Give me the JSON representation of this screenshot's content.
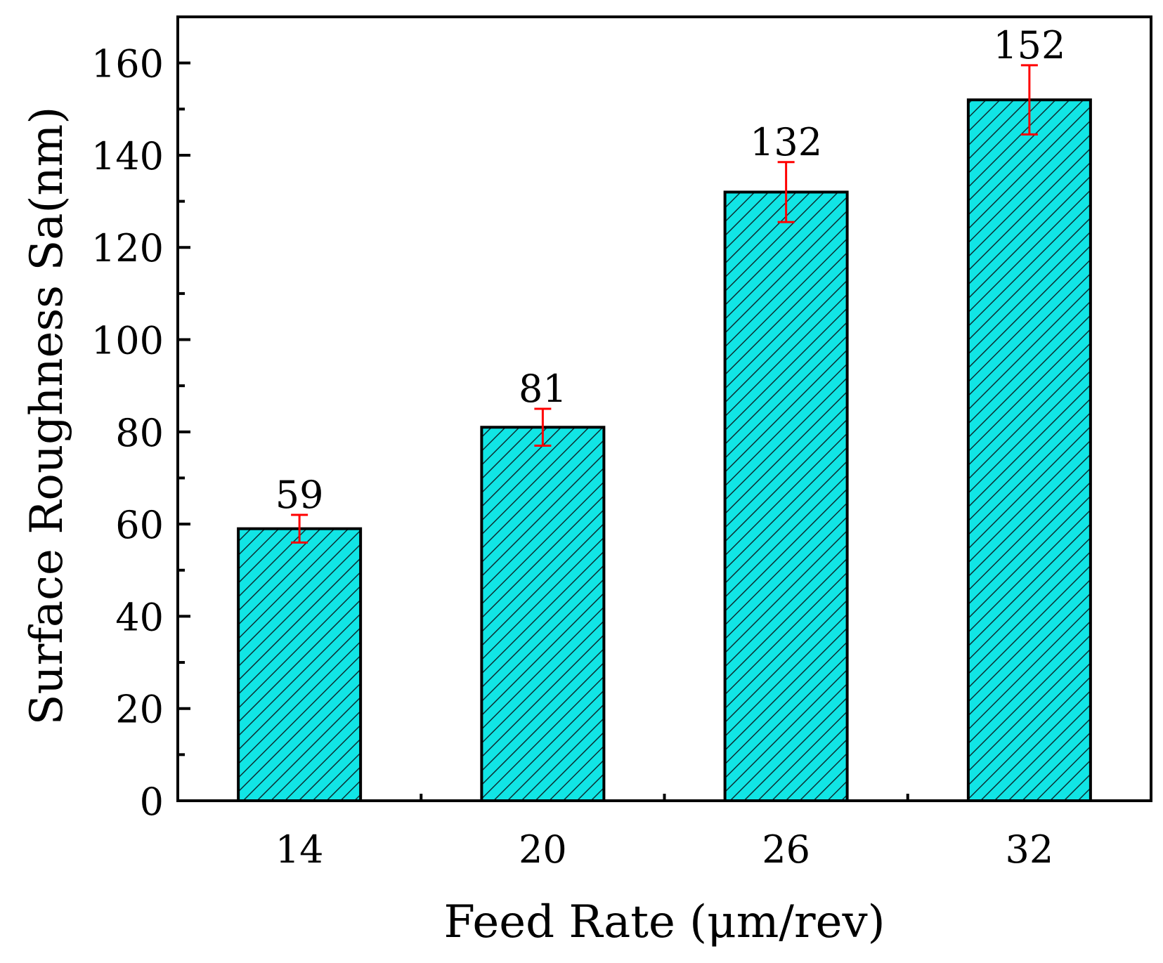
{
  "chart_data": {
    "type": "bar",
    "title": "",
    "xlabel": "Feed Rate (μm/rev)",
    "ylabel": "Surface Roughness Sa(nm)",
    "categories": [
      "14",
      "20",
      "26",
      "32"
    ],
    "values": [
      59,
      81,
      132,
      152
    ],
    "error": [
      3,
      4,
      6.5,
      7.5
    ],
    "data_labels": [
      "59",
      "81",
      "132",
      "152"
    ],
    "ylim": [
      0,
      170
    ],
    "yticks": [
      0,
      20,
      40,
      60,
      80,
      100,
      120,
      140,
      160
    ],
    "ytick_labels": [
      "0",
      "20",
      "40",
      "60",
      "80",
      "100",
      "120",
      "140",
      "160"
    ],
    "grid": false,
    "legend": "none",
    "colors": {
      "bar_fill": "#11e5e5",
      "hatch": "#0b2f33",
      "error_bar": "#ff0000",
      "axis": "#000000"
    }
  }
}
